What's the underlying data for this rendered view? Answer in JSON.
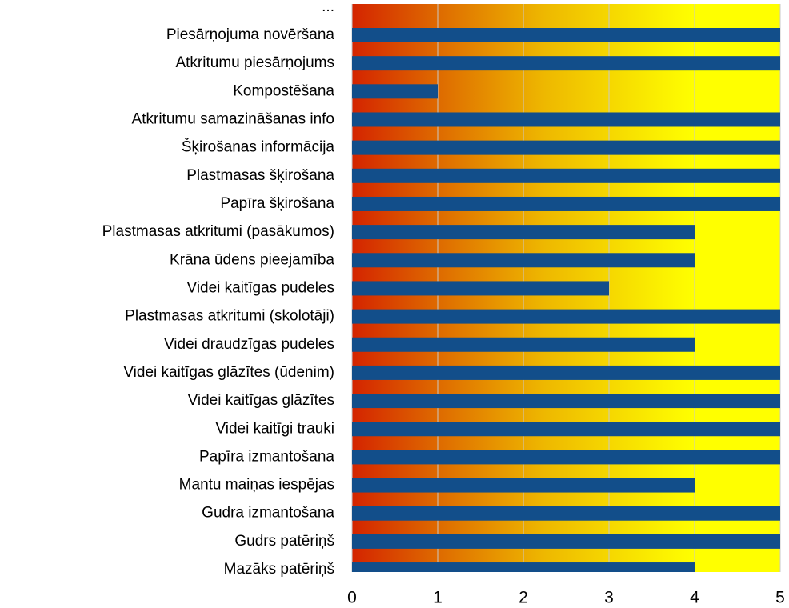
{
  "chart_data": {
    "type": "barh",
    "categories": [
      "...",
      "Piesārņojuma novēršana",
      "Atkritumu piesārņojums",
      "Kompostēšana",
      "Atkritumu  samazināšanas info",
      "Šķirošanas informācija",
      "Plastmasas šķirošana",
      "Papīra šķirošana",
      "Plastmasas atkritumi (pasākumos)",
      "Krāna ūdens pieejamība",
      "Videi kaitīgas pudeles",
      "Plastmasas atkritumi (skolotāji)",
      "Videi draudzīgas pudeles",
      "Videi kaitīgas glāzītes (ūdenim)",
      "Videi kaitīgas glāzītes",
      "Videi kaitīgi trauki",
      "Papīra izmantošana",
      "Mantu maiņas iespējas",
      "Gudra izmantošana",
      "Gudrs patēriņš",
      "Mazāks patēriņš"
    ],
    "values": [
      null,
      5,
      5,
      1,
      5,
      5,
      5,
      5,
      4,
      4,
      3,
      5,
      4,
      5,
      5,
      5,
      5,
      4,
      5,
      5,
      4
    ],
    "color": "#124e8a",
    "xlim": [
      0,
      5
    ],
    "xticks": [
      0,
      1,
      2,
      3,
      4,
      5
    ],
    "grid": true
  }
}
